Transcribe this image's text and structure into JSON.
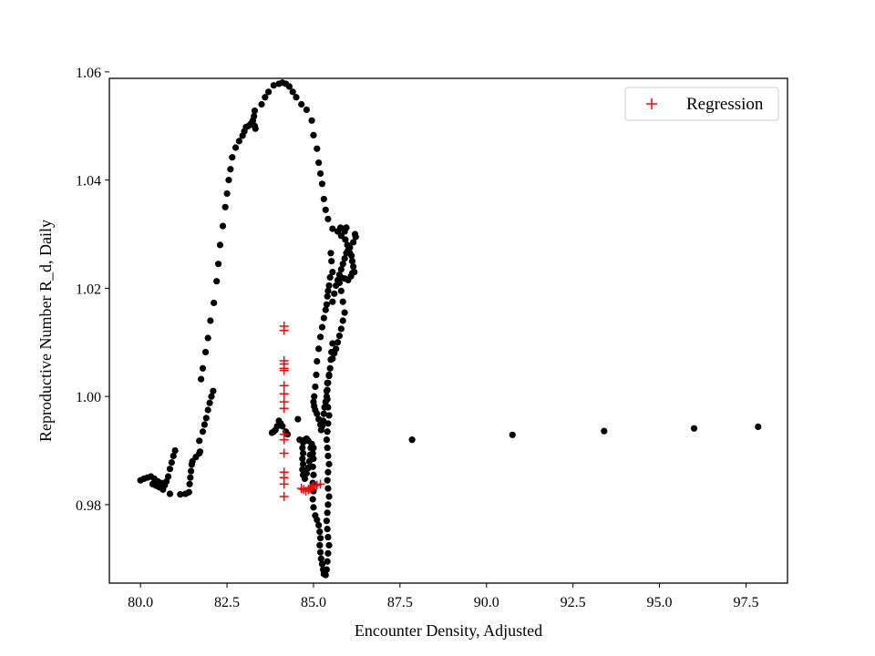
{
  "chart_data": {
    "type": "scatter",
    "title": "",
    "xlabel": "Encounter Density, Adjusted",
    "ylabel": "Reproductive Number R_d, Daily",
    "xlim": [
      79.1,
      98.7
    ],
    "ylim": [
      0.9655,
      1.0588
    ],
    "x_ticks": [
      80.0,
      82.5,
      85.0,
      87.5,
      90.0,
      92.5,
      95.0,
      97.5
    ],
    "x_tick_labels": [
      "80.0",
      "82.5",
      "85.0",
      "87.5",
      "90.0",
      "92.5",
      "95.0",
      "97.5"
    ],
    "y_ticks": [
      0.98,
      1.0,
      1.02,
      1.04,
      1.06
    ],
    "y_tick_labels": [
      "0.98",
      "1.00",
      "1.02",
      "1.04",
      "1.06"
    ],
    "grid": false,
    "legend": {
      "position": "top-right",
      "entries": [
        "Regression"
      ]
    },
    "colors": {
      "data": "#000000",
      "regression": "#ff0000",
      "frame": "#000000"
    },
    "series": [
      {
        "marker": "dot",
        "points": [
          [
            80.0,
            0.9845
          ],
          [
            80.1,
            0.9848
          ],
          [
            80.2,
            0.985
          ],
          [
            80.3,
            0.9852
          ],
          [
            80.35,
            0.9838
          ],
          [
            80.4,
            0.9848
          ],
          [
            80.45,
            0.9835
          ],
          [
            80.5,
            0.9843
          ],
          [
            80.55,
            0.9832
          ],
          [
            80.6,
            0.984
          ],
          [
            80.65,
            0.9828
          ],
          [
            80.7,
            0.9836
          ],
          [
            80.75,
            0.9843
          ],
          [
            80.8,
            0.9852
          ],
          [
            80.85,
            0.9866
          ],
          [
            80.9,
            0.9878
          ],
          [
            80.95,
            0.989
          ],
          [
            81.0,
            0.99
          ],
          [
            80.85,
            0.982
          ],
          [
            81.15,
            0.9819
          ],
          [
            81.3,
            0.982
          ],
          [
            81.4,
            0.9823
          ],
          [
            81.42,
            0.9838
          ],
          [
            81.44,
            0.985
          ],
          [
            81.46,
            0.9862
          ],
          [
            81.48,
            0.9874
          ],
          [
            81.5,
            0.988
          ],
          [
            81.6,
            0.9888
          ],
          [
            81.7,
            0.9895
          ],
          [
            81.72,
            0.9898
          ],
          [
            81.7,
            0.9918
          ],
          [
            81.8,
            0.9935
          ],
          [
            81.85,
            0.9948
          ],
          [
            81.9,
            0.996
          ],
          [
            81.95,
            0.9975
          ],
          [
            82.0,
            0.9988
          ],
          [
            82.05,
            1.0
          ],
          [
            82.1,
            1.001
          ],
          [
            81.75,
            1.0032
          ],
          [
            81.8,
            1.0052
          ],
          [
            81.88,
            1.0082
          ],
          [
            81.95,
            1.0108
          ],
          [
            82.02,
            1.014
          ],
          [
            82.12,
            1.0173
          ],
          [
            82.2,
            1.0213
          ],
          [
            82.25,
            1.0245
          ],
          [
            82.3,
            1.028
          ],
          [
            82.38,
            1.0315
          ],
          [
            82.45,
            1.035
          ],
          [
            82.5,
            1.0375
          ],
          [
            82.55,
            1.04
          ],
          [
            82.6,
            1.042
          ],
          [
            82.65,
            1.0442
          ],
          [
            82.75,
            1.046
          ],
          [
            82.85,
            1.0472
          ],
          [
            82.95,
            1.0482
          ],
          [
            83.0,
            1.049
          ],
          [
            83.05,
            1.0498
          ],
          [
            83.12,
            1.05
          ],
          [
            83.2,
            1.0505
          ],
          [
            83.25,
            1.051
          ],
          [
            83.28,
            1.0518
          ],
          [
            83.3,
            1.05
          ],
          [
            83.32,
            1.0495
          ],
          [
            83.3,
            1.0528
          ],
          [
            83.5,
            1.054
          ],
          [
            83.6,
            1.0553
          ],
          [
            83.7,
            1.0563
          ],
          [
            83.85,
            1.0575
          ],
          [
            84.0,
            1.0578
          ],
          [
            84.1,
            1.058
          ],
          [
            84.2,
            1.0578
          ],
          [
            84.3,
            1.0573
          ],
          [
            84.4,
            1.0563
          ],
          [
            84.5,
            1.0553
          ],
          [
            84.65,
            1.054
          ],
          [
            84.8,
            1.053
          ],
          [
            84.95,
            1.051
          ],
          [
            85.0,
            1.0483
          ],
          [
            85.1,
            1.0458
          ],
          [
            85.15,
            1.0432
          ],
          [
            85.2,
            1.0412
          ],
          [
            85.25,
            1.0393
          ],
          [
            85.3,
            1.0365
          ],
          [
            85.35,
            1.0345
          ],
          [
            85.42,
            1.0328
          ],
          [
            85.55,
            1.031
          ],
          [
            85.7,
            1.0305
          ],
          [
            85.8,
            1.0297
          ],
          [
            85.78,
            1.0312
          ],
          [
            85.85,
            1.031
          ],
          [
            85.9,
            1.0305
          ],
          [
            85.95,
            1.0312
          ],
          [
            85.92,
            1.029
          ],
          [
            85.98,
            1.028
          ],
          [
            86.0,
            1.027
          ],
          [
            86.05,
            1.0265
          ],
          [
            86.1,
            1.026
          ],
          [
            86.12,
            1.025
          ],
          [
            86.15,
            1.024
          ],
          [
            86.18,
            1.023
          ],
          [
            86.2,
            1.03
          ],
          [
            86.22,
            1.0295
          ],
          [
            86.15,
            1.0285
          ],
          [
            86.05,
            1.0275
          ],
          [
            85.95,
            1.0265
          ],
          [
            85.9,
            1.0255
          ],
          [
            85.85,
            1.0245
          ],
          [
            85.8,
            1.0235
          ],
          [
            85.75,
            1.0225
          ],
          [
            85.7,
            1.0215
          ],
          [
            85.8,
            1.022
          ],
          [
            85.9,
            1.0218
          ],
          [
            86.0,
            1.0215
          ],
          [
            86.08,
            1.0222
          ],
          [
            86.12,
            1.0228
          ],
          [
            85.65,
            1.0205
          ],
          [
            85.6,
            1.019
          ],
          [
            85.55,
            1.0175
          ],
          [
            85.55,
            1.023
          ],
          [
            85.52,
            1.025
          ],
          [
            85.5,
            1.0265
          ],
          [
            85.48,
            1.022
          ],
          [
            85.45,
            1.0205
          ],
          [
            85.42,
            1.0195
          ],
          [
            85.4,
            1.0185
          ],
          [
            85.38,
            1.017
          ],
          [
            85.35,
            1.016
          ],
          [
            85.3,
            1.0145
          ],
          [
            85.25,
            1.0128
          ],
          [
            85.2,
            1.011
          ],
          [
            85.15,
            1.0088
          ],
          [
            85.1,
            1.0065
          ],
          [
            85.08,
            1.004
          ],
          [
            85.05,
            1.0018
          ],
          [
            85.02,
            1.0
          ],
          [
            85.0,
            0.999
          ],
          [
            85.02,
            0.9982
          ],
          [
            85.05,
            0.9975
          ],
          [
            85.1,
            0.9968
          ],
          [
            85.15,
            0.9958
          ],
          [
            85.2,
            0.9948
          ],
          [
            85.22,
            0.9938
          ],
          [
            85.25,
            0.9945
          ],
          [
            85.28,
            0.9955
          ],
          [
            85.3,
            0.9968
          ],
          [
            85.32,
            0.998
          ],
          [
            85.35,
            0.999
          ],
          [
            85.38,
            1.0
          ],
          [
            85.4,
            1.0012
          ],
          [
            85.42,
            1.0025
          ],
          [
            85.45,
            1.0038
          ],
          [
            85.48,
            1.0052
          ],
          [
            85.5,
            1.0068
          ],
          [
            85.52,
            1.0082
          ],
          [
            85.55,
            1.0098
          ],
          [
            85.75,
            1.021
          ],
          [
            85.8,
            1.0195
          ],
          [
            85.85,
            1.0175
          ],
          [
            85.9,
            1.0155
          ],
          [
            85.85,
            1.014
          ],
          [
            85.8,
            1.0125
          ],
          [
            85.75,
            1.0112
          ],
          [
            85.7,
            1.01
          ],
          [
            85.65,
            1.0088
          ],
          [
            85.6,
            1.008
          ],
          [
            85.55,
            1.007
          ],
          [
            85.45,
            1.004
          ],
          [
            85.4,
            1.0025
          ],
          [
            85.38,
            1.001
          ],
          [
            85.4,
            0.9995
          ],
          [
            85.42,
            0.998
          ],
          [
            85.45,
            0.9965
          ],
          [
            85.42,
            0.995
          ],
          [
            85.4,
            0.9935
          ],
          [
            85.38,
            0.992
          ],
          [
            85.4,
            0.9905
          ],
          [
            85.42,
            0.989
          ],
          [
            85.45,
            0.9875
          ],
          [
            85.42,
            0.986
          ],
          [
            85.4,
            0.9845
          ],
          [
            85.42,
            0.983
          ],
          [
            85.45,
            0.9815
          ],
          [
            85.42,
            0.98
          ],
          [
            85.4,
            0.9785
          ],
          [
            85.38,
            0.977
          ],
          [
            85.4,
            0.9755
          ],
          [
            85.42,
            0.974
          ],
          [
            85.45,
            0.9725
          ],
          [
            85.42,
            0.971
          ],
          [
            85.4,
            0.9695
          ],
          [
            85.38,
            0.968
          ],
          [
            85.35,
            0.967
          ],
          [
            85.3,
            0.9672
          ],
          [
            85.28,
            0.968
          ],
          [
            85.25,
            0.969
          ],
          [
            85.22,
            0.97
          ],
          [
            85.2,
            0.9712
          ],
          [
            85.18,
            0.9725
          ],
          [
            85.2,
            0.9738
          ],
          [
            85.18,
            0.975
          ],
          [
            85.15,
            0.9762
          ],
          [
            85.1,
            0.9772
          ],
          [
            85.05,
            0.978
          ],
          [
            85.0,
            0.9795
          ],
          [
            84.98,
            0.981
          ],
          [
            85.0,
            0.9825
          ],
          [
            84.98,
            0.984
          ],
          [
            85.0,
            0.9855
          ],
          [
            84.98,
            0.987
          ],
          [
            85.0,
            0.9885
          ],
          [
            84.98,
            0.9895
          ],
          [
            85.0,
            0.9905
          ],
          [
            84.75,
            0.992
          ],
          [
            84.7,
            0.9915
          ],
          [
            84.68,
            0.9905
          ],
          [
            84.7,
            0.9895
          ],
          [
            84.68,
            0.9885
          ],
          [
            84.7,
            0.9875
          ],
          [
            84.68,
            0.9865
          ],
          [
            84.7,
            0.9855
          ],
          [
            84.75,
            0.9848
          ],
          [
            84.8,
            0.9858
          ],
          [
            84.85,
            0.9868
          ],
          [
            84.88,
            0.988
          ],
          [
            84.9,
            0.9892
          ],
          [
            84.92,
            0.9905
          ],
          [
            84.95,
            0.9912
          ],
          [
            84.85,
            0.9918
          ],
          [
            84.8,
            0.9922
          ],
          [
            84.55,
            0.9958
          ],
          [
            84.25,
            0.993
          ],
          [
            84.2,
            0.9935
          ],
          [
            84.1,
            0.9945
          ],
          [
            84.05,
            0.995
          ],
          [
            84.0,
            0.9955
          ],
          [
            83.95,
            0.9945
          ],
          [
            83.9,
            0.9938
          ],
          [
            83.85,
            0.9935
          ],
          [
            83.8,
            0.9933
          ],
          [
            84.6,
            0.992
          ],
          [
            87.85,
            0.992
          ],
          [
            90.75,
            0.9929
          ],
          [
            93.4,
            0.9936
          ],
          [
            96.0,
            0.9941
          ],
          [
            97.85,
            0.9944
          ]
        ]
      },
      {
        "name": "Regression",
        "marker": "plus",
        "points": [
          [
            84.15,
            1.013
          ],
          [
            84.15,
            1.0122
          ],
          [
            84.15,
            1.0066
          ],
          [
            84.15,
            1.006
          ],
          [
            84.15,
            1.0052
          ],
          [
            84.15,
            1.0048
          ],
          [
            84.15,
            1.002
          ],
          [
            84.15,
            1.0005
          ],
          [
            84.15,
            0.999
          ],
          [
            84.15,
            0.9978
          ],
          [
            84.15,
            0.993
          ],
          [
            84.15,
            0.992
          ],
          [
            84.15,
            0.9895
          ],
          [
            84.15,
            0.986
          ],
          [
            84.15,
            0.985
          ],
          [
            84.15,
            0.9838
          ],
          [
            84.15,
            0.9815
          ],
          [
            84.65,
            0.983
          ],
          [
            84.72,
            0.9828
          ],
          [
            84.78,
            0.9825
          ],
          [
            84.85,
            0.9828
          ],
          [
            84.9,
            0.983
          ],
          [
            84.95,
            0.9832
          ],
          [
            85.0,
            0.9835
          ],
          [
            85.1,
            0.9836
          ],
          [
            85.2,
            0.9838
          ]
        ]
      }
    ]
  }
}
